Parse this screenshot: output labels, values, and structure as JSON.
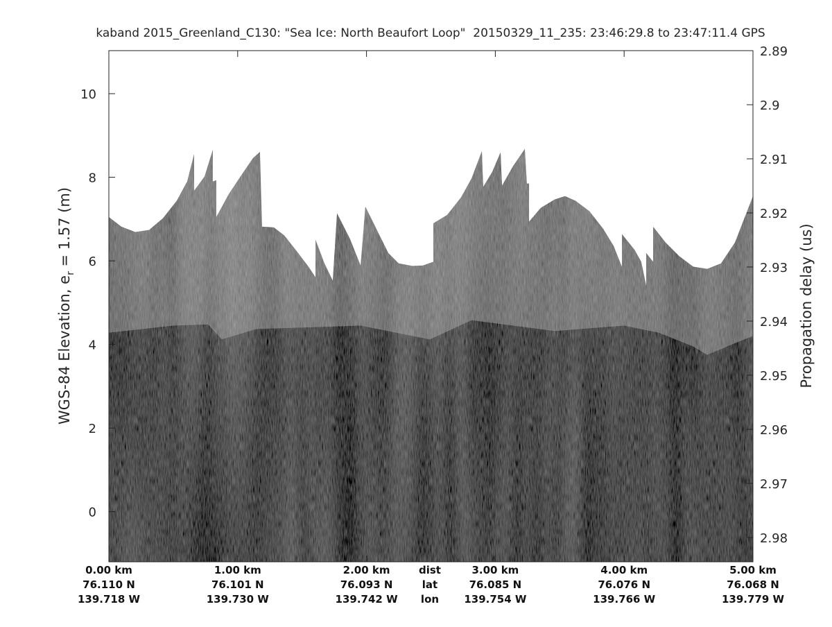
{
  "chart_data": {
    "type": "echogram",
    "title": "kaband 2015_Greenland_C130: \"Sea Ice: North Beaufort Loop\"  20150329_11_235: 23:46:29.8 to 23:47:11.4 GPS",
    "ylabel": [
      "WGS-84 Elevation, e",
      "r",
      " = 1.57 (m)"
    ],
    "y2label": "Propagation delay (us)",
    "xlim": [
      0,
      5
    ],
    "xticks": [
      {
        "value": 0,
        "label": "0.00 km"
      },
      {
        "value": 1,
        "label": "1.00 km"
      },
      {
        "value": 2,
        "label": "2.00 km"
      },
      {
        "value": 3,
        "label": "3.00 km"
      },
      {
        "value": 4,
        "label": "4.00 km"
      },
      {
        "value": 5,
        "label": "5.00 km"
      }
    ],
    "lat_labels": [
      "76.110 N",
      "76.101 N",
      "76.093 N",
      "76.085 N",
      "76.076 N",
      "76.068 N"
    ],
    "lon_labels": [
      "139.718 W",
      "139.730 W",
      "139.742 W",
      "139.754 W",
      "139.766 W",
      "139.779 W"
    ],
    "row_names": [
      "dist",
      "lat",
      "lon"
    ],
    "ylim": [
      -1.2,
      11.03
    ],
    "yticks": [
      0,
      2,
      4,
      6,
      8,
      10
    ],
    "y2lim": [
      2.9845,
      2.89
    ],
    "y2ticks": [
      2.89,
      2.9,
      2.91,
      2.92,
      2.93,
      2.94,
      2.95,
      2.96,
      2.97,
      2.98
    ],
    "series": [
      {
        "color": "#7c7c7c",
        "x": [
          0,
          0.097,
          0.205,
          0.312,
          0.42,
          0.527,
          0.608,
          0.662,
          0.662,
          0.743,
          0.807,
          0.807,
          0.834,
          0.834,
          0.931,
          1.039,
          1.119,
          1.173,
          1.189,
          1.281,
          1.362,
          1.469,
          1.55,
          1.604,
          1.604,
          1.674,
          1.738,
          1.771,
          1.873,
          1.954,
          1.991,
          2.169,
          2.25,
          2.357,
          2.438,
          2.519,
          2.519,
          2.626,
          2.734,
          2.815,
          2.896,
          2.906,
          2.976,
          3.041,
          3.052,
          3.138,
          3.229,
          3.245,
          3.262,
          3.262,
          3.353,
          3.461,
          3.541,
          3.622,
          3.73,
          3.837,
          3.918,
          3.983,
          3.983,
          4.08,
          4.133,
          4.171,
          4.171,
          4.225,
          4.225,
          4.322,
          4.429,
          4.537,
          4.645,
          4.752,
          4.86,
          5
        ],
        "values": [
          7.05,
          6.82,
          6.69,
          6.74,
          7.02,
          7.44,
          7.9,
          8.56,
          7.68,
          8.02,
          8.66,
          7.9,
          7.93,
          7.05,
          7.6,
          8.1,
          8.46,
          8.61,
          6.82,
          6.8,
          6.61,
          6.19,
          5.86,
          5.61,
          6.51,
          5.94,
          5.53,
          7.14,
          6.52,
          5.89,
          7.3,
          6.19,
          5.94,
          5.88,
          5.89,
          5.98,
          6.9,
          7.1,
          7.52,
          7.97,
          8.63,
          7.77,
          8.13,
          8.6,
          7.8,
          8.27,
          8.68,
          7.85,
          7.85,
          6.94,
          7.27,
          7.47,
          7.55,
          7.44,
          7.19,
          6.77,
          6.36,
          5.86,
          6.64,
          6.27,
          5.98,
          5.41,
          6.19,
          5.98,
          6.82,
          6.44,
          6.11,
          5.86,
          5.81,
          5.94,
          6.44,
          7.55
        ]
      },
      {
        "color": "#4e4e4e",
        "x": [
          0,
          0.501,
          0.77,
          0.877,
          1.146,
          1.577,
          1.954,
          2.492,
          2.815,
          3.461,
          3.999,
          4.268,
          4.537,
          4.645,
          4.86,
          5
        ],
        "values": [
          4.28,
          4.45,
          4.48,
          4.12,
          4.37,
          4.41,
          4.45,
          4.12,
          4.58,
          4.32,
          4.45,
          4.28,
          3.95,
          3.75,
          4.03,
          4.2
        ]
      }
    ]
  }
}
